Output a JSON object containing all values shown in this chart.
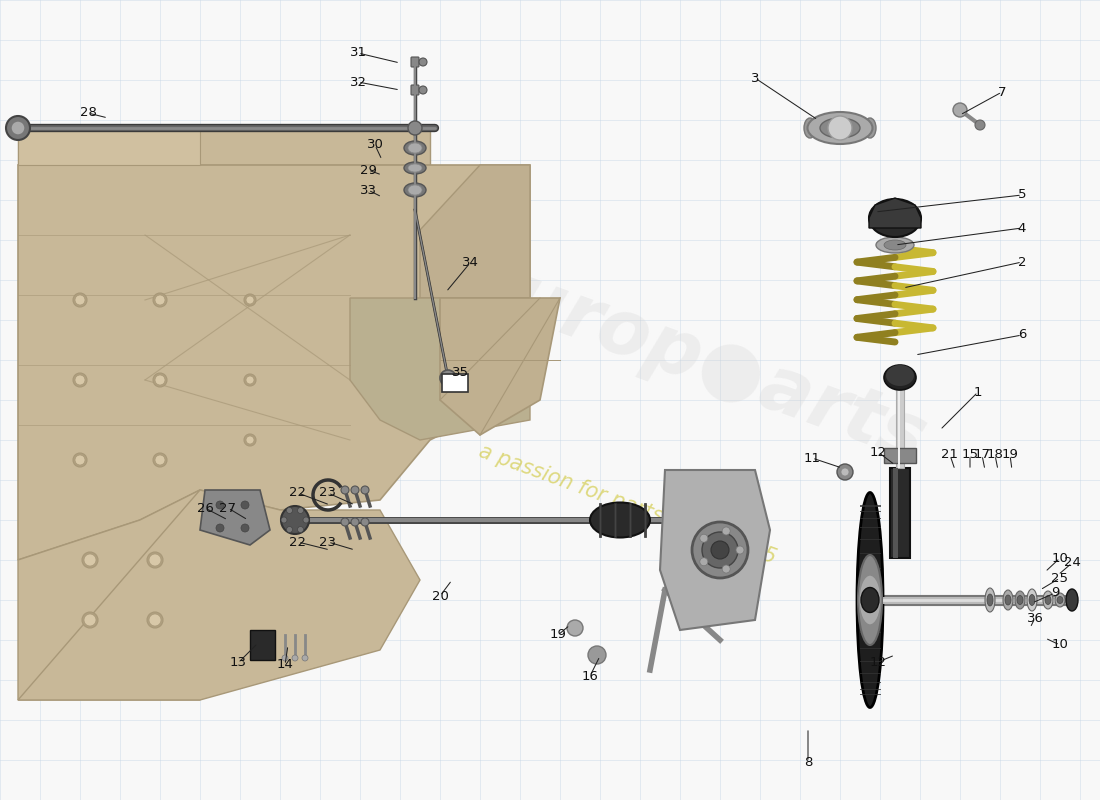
{
  "bg_color": "#f8f8f8",
  "grid_color": "#c5d5e5",
  "frame_color": "#c8b898",
  "frame_dark": "#a89878",
  "frame_shadow": "#b0a080",
  "shock_dark": "#2a2a2a",
  "shock_mid": "#555555",
  "shock_light": "#999999",
  "spring_color": "#c8b832",
  "spring_shadow": "#908020",
  "disc_dark": "#1a1a1a",
  "disc_ring": "#555555",
  "rubber_color": "#3a3a3a",
  "metal_light": "#cccccc",
  "metal_mid": "#aaaaaa",
  "metal_dark": "#777777",
  "axle_color": "#888888",
  "label_color": "#111111",
  "label_fs": 9.5,
  "watermark1_color": "#d8d8d8",
  "watermark2_color": "#d4cc60",
  "callouts": [
    [
      "1",
      978,
      392,
      940,
      430,
      "right"
    ],
    [
      "2",
      1022,
      262,
      903,
      288,
      "right"
    ],
    [
      "3",
      755,
      78,
      818,
      120,
      "left"
    ],
    [
      "4",
      1022,
      228,
      895,
      245,
      "right"
    ],
    [
      "5",
      1022,
      195,
      875,
      212,
      "right"
    ],
    [
      "6",
      1022,
      335,
      915,
      355,
      "right"
    ],
    [
      "7",
      1002,
      92,
      960,
      115,
      "right"
    ],
    [
      "8",
      808,
      762,
      808,
      728,
      "left"
    ],
    [
      "9",
      1055,
      593,
      1032,
      603,
      "right"
    ],
    [
      "10",
      1060,
      558,
      1045,
      572,
      "right"
    ],
    [
      "10",
      1060,
      645,
      1045,
      638,
      "right"
    ],
    [
      "11",
      812,
      458,
      842,
      468,
      "left"
    ],
    [
      "12",
      878,
      452,
      895,
      465,
      "right"
    ],
    [
      "12",
      878,
      662,
      895,
      655,
      "right"
    ],
    [
      "13",
      238,
      663,
      258,
      643,
      "left"
    ],
    [
      "14",
      285,
      665,
      288,
      645,
      "right"
    ],
    [
      "15",
      970,
      455,
      970,
      470,
      "right"
    ],
    [
      "16",
      590,
      676,
      600,
      656,
      "left"
    ],
    [
      "17",
      982,
      455,
      985,
      470,
      "right"
    ],
    [
      "18",
      995,
      455,
      998,
      470,
      "right"
    ],
    [
      "19",
      1010,
      455,
      1012,
      470,
      "right"
    ],
    [
      "19",
      558,
      635,
      570,
      625,
      "left"
    ],
    [
      "20",
      440,
      596,
      452,
      580,
      "left"
    ],
    [
      "21",
      950,
      455,
      955,
      470,
      "right"
    ],
    [
      "22",
      298,
      493,
      330,
      505,
      "left"
    ],
    [
      "22",
      298,
      542,
      330,
      550,
      "left"
    ],
    [
      "23",
      328,
      493,
      355,
      505,
      "right"
    ],
    [
      "23",
      328,
      542,
      355,
      550,
      "right"
    ],
    [
      "24",
      1072,
      563,
      1058,
      575,
      "right"
    ],
    [
      "25",
      1060,
      578,
      1040,
      590,
      "right"
    ],
    [
      "26",
      205,
      508,
      228,
      520,
      "left"
    ],
    [
      "27",
      228,
      508,
      248,
      520,
      "right"
    ],
    [
      "28",
      88,
      113,
      108,
      118,
      "left"
    ],
    [
      "29",
      368,
      170,
      382,
      175,
      "left"
    ],
    [
      "30",
      375,
      145,
      382,
      160,
      "left"
    ],
    [
      "31",
      358,
      53,
      400,
      63,
      "left"
    ],
    [
      "32",
      358,
      82,
      400,
      90,
      "left"
    ],
    [
      "33",
      368,
      190,
      382,
      197,
      "left"
    ],
    [
      "34",
      470,
      263,
      446,
      292,
      "right"
    ],
    [
      "35",
      460,
      373,
      450,
      375,
      "right"
    ],
    [
      "36",
      1035,
      618,
      1030,
      628,
      "right"
    ]
  ]
}
